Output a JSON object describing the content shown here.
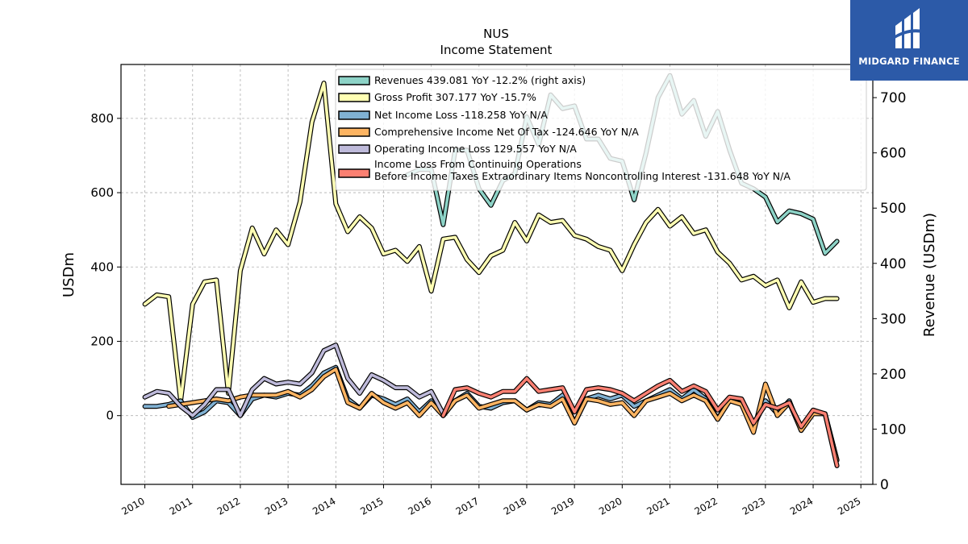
{
  "chart_data": {
    "type": "line",
    "title": "NUS",
    "subtitle": "Income Statement",
    "ylabel": "USDm",
    "ylabel_right": "Revenue (USDm)",
    "xlim": [
      2009.5,
      2025.25
    ],
    "ylim": [
      -185,
      945
    ],
    "ylim_right": [
      0,
      760
    ],
    "xticks": [
      "2010",
      "2011",
      "2012",
      "2013",
      "2014",
      "2015",
      "2016",
      "2017",
      "2018",
      "2019",
      "2020",
      "2021",
      "2022",
      "2023",
      "2024",
      "2025"
    ],
    "yticks": [
      0,
      200,
      400,
      600,
      800
    ],
    "yticks_right": [
      0,
      100,
      200,
      300,
      400,
      500,
      600,
      700
    ],
    "grid": true,
    "legend_position": "top",
    "series": [
      {
        "name": "Revenues  439.081 YoY -12.2% (right axis)",
        "axis": "right",
        "color": "#8dd3c7",
        "x": [
          2015.5,
          2015.75,
          2016.0,
          2016.25,
          2016.5,
          2016.75,
          2017.0,
          2017.25,
          2017.5,
          2017.75,
          2018.0,
          2018.25,
          2018.5,
          2018.75,
          2019.0,
          2019.25,
          2019.5,
          2019.75,
          2020.0,
          2020.25,
          2020.5,
          2020.75,
          2021.0,
          2021.25,
          2021.5,
          2021.75,
          2022.0,
          2022.25,
          2022.5,
          2022.75,
          2023.0,
          2023.25,
          2023.5,
          2023.75,
          2024.0,
          2024.25,
          2024.5
        ],
        "y": [
          560,
          570,
          570,
          470,
          605,
          605,
          535,
          505,
          550,
          562,
          665,
          615,
          705,
          680,
          685,
          625,
          625,
          590,
          585,
          515,
          600,
          700,
          740,
          670,
          695,
          630,
          675,
          605,
          545,
          535,
          520,
          475,
          495,
          490,
          480,
          418,
          440
        ]
      },
      {
        "name": "Gross Profit  307.177 YoY -15.7%",
        "axis": "left",
        "color": "#ffffb3",
        "x": [
          2010.0,
          2010.25,
          2010.5,
          2010.75,
          2011.0,
          2011.25,
          2011.5,
          2011.75,
          2012.0,
          2012.25,
          2012.5,
          2012.75,
          2013.0,
          2013.25,
          2013.5,
          2013.75,
          2014.0,
          2014.25,
          2014.5,
          2014.75,
          2015.0,
          2015.25,
          2015.5,
          2015.75,
          2016.0,
          2016.25,
          2016.5,
          2016.75,
          2017.0,
          2017.25,
          2017.5,
          2017.75,
          2018.0,
          2018.25,
          2018.5,
          2018.75,
          2019.0,
          2019.25,
          2019.5,
          2019.75,
          2020.0,
          2020.25,
          2020.5,
          2020.75,
          2021.0,
          2021.25,
          2021.5,
          2021.75,
          2022.0,
          2022.25,
          2022.5,
          2022.75,
          2023.0,
          2023.25,
          2023.5,
          2023.75,
          2024.0,
          2024.25,
          2024.5
        ],
        "y": [
          300,
          325,
          320,
          40,
          300,
          360,
          365,
          60,
          390,
          505,
          435,
          500,
          460,
          575,
          790,
          895,
          570,
          495,
          535,
          505,
          435,
          445,
          415,
          455,
          335,
          475,
          480,
          420,
          385,
          430,
          445,
          520,
          470,
          540,
          520,
          525,
          485,
          475,
          455,
          445,
          390,
          460,
          520,
          555,
          510,
          535,
          490,
          500,
          440,
          410,
          365,
          375,
          350,
          365,
          290,
          360,
          305,
          315,
          315
        ],
        "y_note": "values read off left axis"
      },
      {
        "name": "Net Income Loss  -118.258 YoY N/A",
        "axis": "left",
        "color": "#80b1d3",
        "x": [
          2010.0,
          2010.25,
          2010.5,
          2010.75,
          2011.0,
          2011.25,
          2011.5,
          2011.75,
          2012.0,
          2012.25,
          2012.5,
          2012.75,
          2013.0,
          2013.25,
          2013.5,
          2013.75,
          2014.0,
          2014.25,
          2014.5,
          2014.75,
          2015.0,
          2015.25,
          2015.5,
          2015.75,
          2016.0,
          2016.25,
          2016.5,
          2016.75,
          2017.0,
          2017.25,
          2017.5,
          2017.75,
          2018.0,
          2018.25,
          2018.5,
          2018.75,
          2019.0,
          2019.25,
          2019.5,
          2019.75,
          2020.0,
          2020.25,
          2020.5,
          2020.75,
          2021.0,
          2021.25,
          2021.5,
          2021.75,
          2022.0,
          2022.25,
          2022.5,
          2022.75,
          2023.0,
          2023.25,
          2023.5,
          2023.75,
          2024.0,
          2024.25,
          2024.5
        ],
        "y": [
          25,
          25,
          30,
          40,
          -5,
          10,
          40,
          35,
          0,
          45,
          55,
          50,
          60,
          55,
          80,
          115,
          130,
          45,
          20,
          55,
          45,
          30,
          45,
          10,
          40,
          0,
          40,
          60,
          25,
          20,
          35,
          40,
          15,
          35,
          30,
          55,
          -20,
          45,
          55,
          45,
          55,
          25,
          40,
          55,
          70,
          45,
          70,
          45,
          -10,
          45,
          30,
          -30,
          40,
          5,
          40,
          -40,
          10,
          5,
          -120
        ]
      },
      {
        "name": "Comprehensive Income Net Of Tax  -124.646 YoY N/A",
        "axis": "left",
        "color": "#fdb462",
        "x": [
          2010.5,
          2010.75,
          2011.0,
          2011.25,
          2011.5,
          2011.75,
          2012.0,
          2012.25,
          2012.5,
          2012.75,
          2013.0,
          2013.25,
          2013.5,
          2013.75,
          2014.0,
          2014.25,
          2014.5,
          2014.75,
          2015.0,
          2015.25,
          2015.5,
          2015.75,
          2016.0,
          2016.25,
          2016.5,
          2016.75,
          2017.0,
          2017.25,
          2017.5,
          2017.75,
          2018.0,
          2018.25,
          2018.5,
          2018.75,
          2019.0,
          2019.25,
          2019.5,
          2019.75,
          2020.0,
          2020.25,
          2020.5,
          2020.75,
          2021.0,
          2021.25,
          2021.5,
          2021.75,
          2022.0,
          2022.25,
          2022.5,
          2022.75,
          2023.0,
          2023.25,
          2023.5,
          2023.75,
          2024.0,
          2024.25,
          2024.5
        ],
        "y": [
          25,
          30,
          35,
          40,
          45,
          40,
          50,
          55,
          55,
          55,
          65,
          50,
          70,
          105,
          125,
          35,
          20,
          60,
          35,
          20,
          35,
          0,
          35,
          0,
          40,
          55,
          20,
          30,
          40,
          40,
          15,
          30,
          25,
          45,
          -20,
          45,
          40,
          30,
          35,
          0,
          40,
          50,
          60,
          40,
          55,
          40,
          -10,
          40,
          30,
          -45,
          85,
          0,
          35,
          -40,
          5,
          5,
          -120
        ]
      },
      {
        "name": "Operating Income Loss  129.557 YoY N/A",
        "axis": "left",
        "color": "#bebada",
        "x": [
          2010.0,
          2010.25,
          2010.5,
          2010.75,
          2011.0,
          2011.25,
          2011.5,
          2011.75,
          2012.0,
          2012.25,
          2012.5,
          2012.75,
          2013.0,
          2013.25,
          2013.5,
          2013.75,
          2014.0,
          2014.25,
          2014.5,
          2014.75,
          2015.0,
          2015.25,
          2015.5,
          2015.75,
          2016.0,
          2016.25
        ],
        "y": [
          50,
          65,
          60,
          25,
          0,
          30,
          70,
          70,
          0,
          70,
          100,
          85,
          90,
          85,
          115,
          175,
          190,
          100,
          60,
          110,
          95,
          75,
          75,
          50,
          65,
          5
        ]
      },
      {
        "name": "Income Loss From Continuing Operations\nBefore Income Taxes Extraordinary Items Noncontrolling Interest  -131.648 YoY N/A",
        "axis": "left",
        "color": "#fb8072",
        "x": [
          2016.25,
          2016.5,
          2016.75,
          2017.0,
          2017.25,
          2017.5,
          2017.75,
          2018.0,
          2018.25,
          2018.5,
          2018.75,
          2019.0,
          2019.25,
          2019.5,
          2019.75,
          2020.0,
          2020.25,
          2020.5,
          2020.75,
          2021.0,
          2021.25,
          2021.5,
          2021.75,
          2022.0,
          2022.25,
          2022.5,
          2022.75,
          2023.0,
          2023.25,
          2023.5,
          2023.75,
          2024.0,
          2024.25,
          2024.5
        ],
        "y": [
          0,
          70,
          75,
          60,
          50,
          65,
          65,
          100,
          65,
          70,
          75,
          10,
          70,
          75,
          70,
          60,
          40,
          60,
          80,
          95,
          65,
          80,
          65,
          15,
          50,
          45,
          -20,
          30,
          20,
          35,
          -30,
          15,
          5,
          -135
        ]
      }
    ]
  },
  "logo": {
    "text": "MIDGARD FINANCE"
  }
}
